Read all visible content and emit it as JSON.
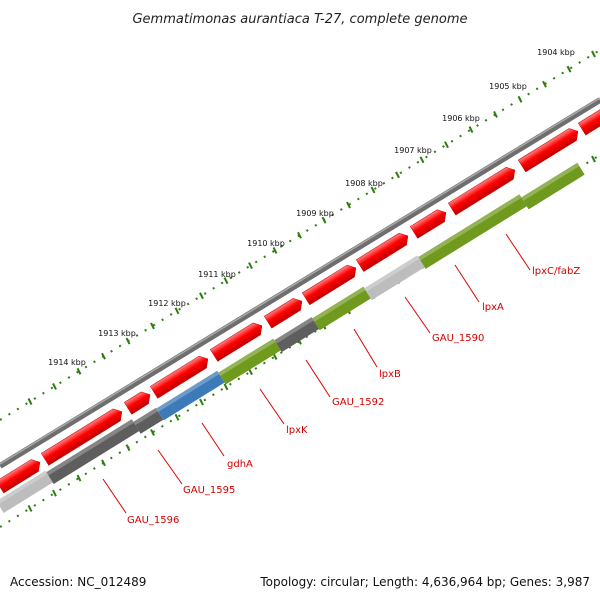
{
  "title": "Gemmatimonas aurantiaca T-27, complete genome",
  "accession_text": "Accession: NC_012489",
  "summary_text": "Topology: circular; Length: 4,636,964 bp; Genes: 3,987",
  "scale_labels": [
    "1904 kbp",
    "1905 kbp",
    "1906 kbp",
    "1907 kbp",
    "1908 kbp",
    "1909 kbp",
    "1910 kbp",
    "1911 kbp",
    "1912 kbp",
    "1913 kbp",
    "1914 kbp"
  ],
  "gene_labels": [
    "lpxC/fabZ",
    "lpxA",
    "GAU_1590",
    "lpxB",
    "GAU_1592",
    "lpxK",
    "gdhA",
    "GAU_1595",
    "GAU_1596"
  ],
  "colors": {
    "cds": "#ff0000",
    "backbone": "#777777",
    "ticks": "#2e7d10",
    "label_red": "#d40000",
    "gene_olive": "#6f9a1e",
    "gene_gray_light": "#bdbdbd",
    "gene_gray_dark": "#5e5e5e",
    "gene_blue": "#3d7ab8"
  }
}
